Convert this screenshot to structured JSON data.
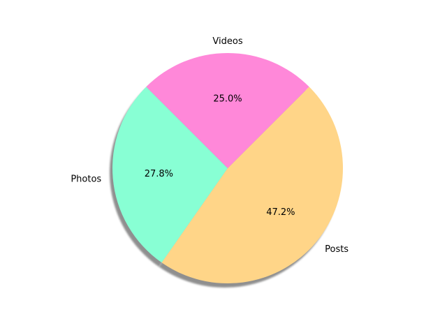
{
  "chart_data": {
    "type": "pie",
    "title": "",
    "start_angle_deg": 135,
    "direction": "counterclockwise",
    "shadow": true,
    "slices": [
      {
        "label": "Photos",
        "value": 27.8,
        "pct_text": "27.8%",
        "color": "#88ffd4"
      },
      {
        "label": "Posts",
        "value": 47.2,
        "pct_text": "47.2%",
        "color": "#ffd588"
      },
      {
        "label": "Videos",
        "value": 25.0,
        "pct_text": "25.0%",
        "color": "#ff88d9"
      }
    ]
  }
}
